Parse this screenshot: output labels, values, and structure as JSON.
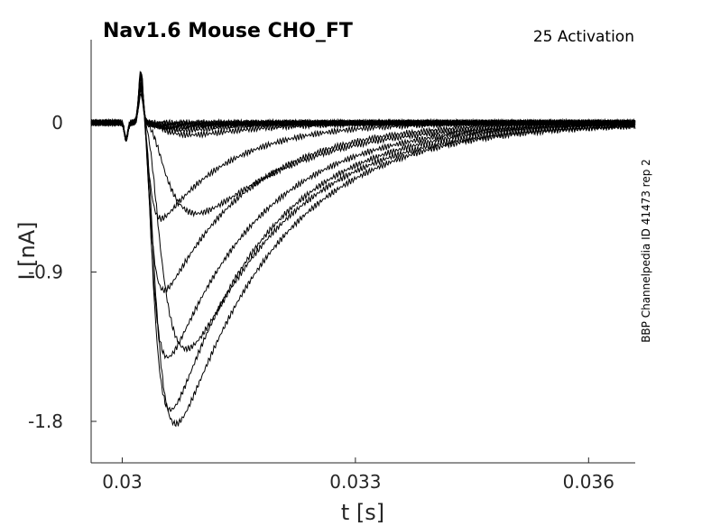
{
  "chart_data": {
    "type": "line",
    "title": "Nav1.6  Mouse  CHO_FT",
    "annotation": "25  Activation",
    "side_label": "BBP Channelpedia ID 41473 rep 2",
    "xlabel": "t [s]",
    "ylabel": "I [nA]",
    "xlim": [
      0.0296,
      0.0366
    ],
    "ylim": [
      -2.05,
      0.5
    ],
    "xticks": [
      0.03,
      0.033,
      0.036
    ],
    "xtick_labels": [
      "0.03",
      "0.033",
      "0.036"
    ],
    "yticks": [
      0,
      -0.9,
      -1.8
    ],
    "ytick_labels": [
      "0",
      "-0.9",
      "-1.8"
    ],
    "grid": false,
    "series": [
      {
        "peak": 0.0,
        "t_peak": 0.0305,
        "decay": 0.0004
      },
      {
        "peak": -0.01,
        "t_peak": 0.0305,
        "decay": 0.0004
      },
      {
        "peak": -0.02,
        "t_peak": 0.0305,
        "decay": 0.0005
      },
      {
        "peak": -0.03,
        "t_peak": 0.0305,
        "decay": 0.0006
      },
      {
        "peak": -0.04,
        "t_peak": 0.0306,
        "decay": 0.0007
      },
      {
        "peak": -0.06,
        "t_peak": 0.0307,
        "decay": 0.0008
      },
      {
        "peak": -0.1,
        "t_peak": 0.0308,
        "decay": 0.0009
      },
      {
        "peak": -0.55,
        "t_peak": 0.0304,
        "decay": 0.0009
      },
      {
        "peak": -0.66,
        "t_peak": 0.0308,
        "decay": 0.0013
      },
      {
        "peak": -0.95,
        "t_peak": 0.03042,
        "decay": 0.0011
      },
      {
        "peak": -1.35,
        "t_peak": 0.03045,
        "decay": 0.0012
      },
      {
        "peak": -1.51,
        "t_peak": 0.03066,
        "decay": 0.0013
      },
      {
        "peak": -1.7,
        "t_peak": 0.03048,
        "decay": 0.0012
      },
      {
        "peak": -1.83,
        "t_peak": 0.03053,
        "decay": 0.0013
      }
    ]
  }
}
